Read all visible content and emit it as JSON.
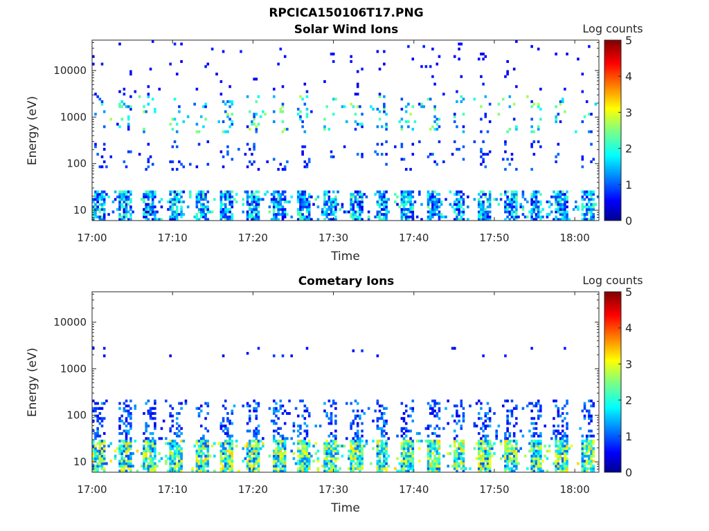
{
  "title": "RPCICA150106T17.PNG",
  "chart_data": [
    {
      "type": "heatmap",
      "title": "Solar Wind Ions",
      "xlabel": "Time",
      "ylabel": "Energy (eV)",
      "x_ticks": [
        "17:00",
        "17:10",
        "17:20",
        "17:30",
        "17:40",
        "17:50",
        "18:00"
      ],
      "x_range_minutes": [
        0,
        63
      ],
      "y_scale": "log",
      "y_ticks": [
        10,
        100,
        1000,
        10000
      ],
      "y_tick_labels": [
        "10",
        "100",
        "1000",
        "10000"
      ],
      "y_range": [
        6,
        45000
      ],
      "colorbar": {
        "label": "Log counts",
        "range": [
          0,
          5
        ],
        "ticks": [
          "0",
          "1",
          "2",
          "3",
          "4",
          "5"
        ],
        "colormap": "jet"
      },
      "sweep_period_minutes": 3.2,
      "bands": [
        {
          "emin": 6,
          "emax": 28,
          "density": 0.78,
          "level_min": 0.5,
          "level_max": 2.4
        },
        {
          "emin": 70,
          "emax": 330,
          "density": 0.1,
          "level_min": 0.5,
          "level_max": 1.2
        },
        {
          "emin": 450,
          "emax": 3000,
          "density": 0.13,
          "level_min": 0.6,
          "level_max": 2.8
        },
        {
          "emin": 3000,
          "emax": 45000,
          "density": 0.03,
          "level_min": 0.5,
          "level_max": 0.8
        }
      ]
    },
    {
      "type": "heatmap",
      "title": "Cometary Ions",
      "xlabel": "Time",
      "ylabel": "Energy (eV)",
      "x_ticks": [
        "17:00",
        "17:10",
        "17:20",
        "17:30",
        "17:40",
        "17:50",
        "18:00"
      ],
      "x_range_minutes": [
        0,
        63
      ],
      "y_scale": "log",
      "y_ticks": [
        10,
        100,
        1000,
        10000
      ],
      "y_tick_labels": [
        "10",
        "100",
        "1000",
        "10000"
      ],
      "y_range": [
        6,
        45000
      ],
      "colorbar": {
        "label": "Log counts",
        "range": [
          0,
          5
        ],
        "ticks": [
          "0",
          "1",
          "2",
          "3",
          "4",
          "5"
        ],
        "colormap": "jet"
      },
      "sweep_period_minutes": 3.2,
      "bands": [
        {
          "emin": 6,
          "emax": 30,
          "density": 0.88,
          "level_min": 1.0,
          "level_max": 3.4
        },
        {
          "emin": 30,
          "emax": 230,
          "density": 0.3,
          "level_min": 0.5,
          "level_max": 1.5
        },
        {
          "emin": 1700,
          "emax": 3000,
          "density": 0.04,
          "level_min": 0.5,
          "level_max": 0.9
        }
      ]
    }
  ]
}
